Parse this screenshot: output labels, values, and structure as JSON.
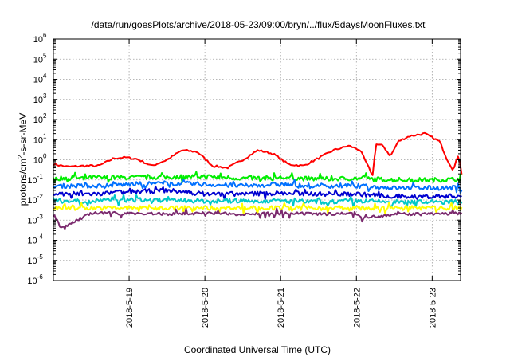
{
  "chart_data": {
    "type": "line",
    "title": "/data/run/goesPlots/archive/2018-05-23/09:00/bryn/../flux/5daysMoonFluxes.txt",
    "xlabel": "Coordinated Universal Time (UTC)",
    "ylabel": "protons/cm²-s-sr-MeV",
    "y_scale": "log",
    "ylim": [
      1e-06,
      1000000.0
    ],
    "xlim": [
      "2018-05-18 00:00",
      "2018-05-23 09:00"
    ],
    "y_ticks": [
      {
        "value": 1e-06,
        "mantissa": "10",
        "exp": "-6"
      },
      {
        "value": 1e-05,
        "mantissa": "10",
        "exp": "-5"
      },
      {
        "value": 0.0001,
        "mantissa": "10",
        "exp": "-4"
      },
      {
        "value": 0.001,
        "mantissa": "10",
        "exp": "-3"
      },
      {
        "value": 0.01,
        "mantissa": "10",
        "exp": "-2"
      },
      {
        "value": 0.1,
        "mantissa": "10",
        "exp": "-1"
      },
      {
        "value": 1.0,
        "mantissa": "10",
        "exp": "0"
      },
      {
        "value": 10.0,
        "mantissa": "10",
        "exp": "1"
      },
      {
        "value": 100.0,
        "mantissa": "10",
        "exp": "2"
      },
      {
        "value": 1000.0,
        "mantissa": "10",
        "exp": "3"
      },
      {
        "value": 10000.0,
        "mantissa": "10",
        "exp": "4"
      },
      {
        "value": 100000.0,
        "mantissa": "10",
        "exp": "5"
      },
      {
        "value": 1000000.0,
        "mantissa": "10",
        "exp": "6"
      }
    ],
    "x_ticks": [
      {
        "day": 1,
        "label": "2018-5-19"
      },
      {
        "day": 2,
        "label": "2018-5-20"
      },
      {
        "day": 3,
        "label": "2018-5-21"
      },
      {
        "day": 4,
        "label": "2018-5-22"
      },
      {
        "day": 5,
        "label": "2018-5-23"
      }
    ],
    "grid": true,
    "x_unit": "days after 2018-05-18 00:00",
    "series": [
      {
        "color": "#ff0000",
        "x": [
          0.0,
          0.2,
          0.4,
          0.6,
          0.8,
          0.95,
          1.1,
          1.3,
          1.5,
          1.7,
          1.9,
          2.1,
          2.3,
          2.5,
          2.7,
          2.9,
          3.1,
          3.3,
          3.5,
          3.7,
          3.9,
          4.05,
          4.15,
          4.22,
          4.25,
          4.35,
          4.45,
          4.55,
          4.6,
          4.7,
          4.9,
          5.1,
          5.2,
          5.28,
          5.35,
          5.39
        ],
        "values": [
          0.6,
          0.45,
          0.5,
          0.5,
          1.2,
          1.3,
          1.1,
          0.5,
          1.0,
          3.0,
          2.5,
          0.5,
          0.4,
          1.0,
          3.0,
          2.0,
          0.6,
          0.5,
          1.2,
          3.0,
          5.0,
          3.0,
          0.5,
          0.15,
          6.0,
          5.0,
          1.5,
          8.0,
          10,
          15,
          20,
          8,
          1.0,
          0.3,
          2.0,
          0.2
        ]
      },
      {
        "color": "#00ee00",
        "x": [
          0.0,
          0.5,
          1.0,
          1.5,
          2.0,
          2.5,
          3.0,
          3.5,
          4.0,
          4.5,
          5.0,
          5.39
        ],
        "values": [
          0.12,
          0.13,
          0.13,
          0.14,
          0.15,
          0.12,
          0.13,
          0.11,
          0.12,
          0.1,
          0.1,
          0.11
        ]
      },
      {
        "color": "#0070ff",
        "x": [
          0.0,
          0.5,
          1.0,
          1.5,
          2.0,
          2.5,
          3.0,
          3.5,
          4.0,
          4.5,
          5.0,
          5.39
        ],
        "values": [
          0.05,
          0.05,
          0.06,
          0.07,
          0.06,
          0.05,
          0.06,
          0.05,
          0.05,
          0.04,
          0.04,
          0.04
        ]
      },
      {
        "color": "#0000d0",
        "x": [
          0.0,
          0.5,
          1.0,
          1.5,
          2.0,
          2.5,
          3.0,
          3.5,
          4.0,
          4.5,
          5.0,
          5.39
        ],
        "values": [
          0.02,
          0.02,
          0.025,
          0.03,
          0.02,
          0.02,
          0.022,
          0.02,
          0.02,
          0.015,
          0.015,
          0.016
        ]
      },
      {
        "color": "#00c8c8",
        "x": [
          0.0,
          0.5,
          1.0,
          1.5,
          2.0,
          2.5,
          3.0,
          3.5,
          4.0,
          4.5,
          5.0,
          5.39
        ],
        "values": [
          0.009,
          0.009,
          0.01,
          0.01,
          0.009,
          0.009,
          0.009,
          0.008,
          0.009,
          0.008,
          0.008,
          0.008
        ]
      },
      {
        "color": "#ffff00",
        "x": [
          0.0,
          0.5,
          1.0,
          1.5,
          2.0,
          2.5,
          3.0,
          3.5,
          4.0,
          4.5,
          5.0,
          5.39
        ],
        "values": [
          0.004,
          0.004,
          0.004,
          0.004,
          0.004,
          0.004,
          0.004,
          0.004,
          0.004,
          0.004,
          0.004,
          0.004
        ]
      },
      {
        "color": "#7b2a6e",
        "x": [
          0.0,
          0.1,
          0.5,
          1.0,
          1.5,
          2.0,
          2.5,
          3.0,
          3.5,
          4.0,
          4.1,
          4.5,
          5.0,
          5.39
        ],
        "values": [
          0.0022,
          0.0004,
          0.0022,
          0.0022,
          0.002,
          0.0022,
          0.002,
          0.0022,
          0.002,
          0.0022,
          0.0013,
          0.002,
          0.002,
          0.0022
        ]
      }
    ]
  }
}
